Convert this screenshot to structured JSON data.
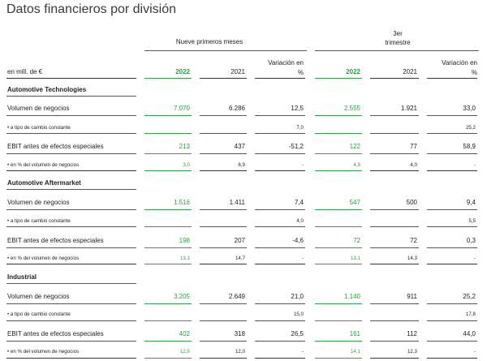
{
  "title": "Datos financieros por división",
  "groups": {
    "first": "Nueve primeros meses",
    "second_line1": "3er",
    "second_line2": "trimestre"
  },
  "header": {
    "unit": "en mill. de €",
    "y2022a": "2022",
    "y2021a": "2021",
    "var_a_1": "Variación en",
    "var_a_2": "%",
    "y2022b": "2022",
    "y2021b": "2021",
    "var_b_1": "Variación en",
    "var_b_2": "%"
  },
  "sections": [
    {
      "title": "Automotive Technologies",
      "rows": [
        {
          "label": "Volumen de negocios",
          "a22": "7.070",
          "a21": "6.286",
          "av": "12,5",
          "b22": "2.555",
          "b21": "1.921",
          "bv": "33,0"
        },
        {
          "label": "• a tipo de cambio constante",
          "a22": "",
          "a21": "",
          "av": "7,0",
          "b22": "",
          "b21": "",
          "bv": "25,2"
        },
        {
          "label": "EBIT antes de efectos especiales",
          "a22": "213",
          "a21": "437",
          "av": "-51,2",
          "b22": "122",
          "b21": "77",
          "bv": "58,9"
        },
        {
          "label": "• en % del volumen de negocios",
          "a22": "3,0",
          "a21": "6,9",
          "av": "-",
          "b22": "4,8",
          "b21": "4,0",
          "bv": "-"
        }
      ]
    },
    {
      "title": "Automotive Aftermarket",
      "rows": [
        {
          "label": "Volumen de negocios",
          "a22": "1.516",
          "a21": "1.411",
          "av": "7,4",
          "b22": "547",
          "b21": "500",
          "bv": "9,4"
        },
        {
          "label": "• a tipo de cambio constante",
          "a22": "",
          "a21": "",
          "av": "4,0",
          "b22": "",
          "b21": "",
          "bv": "5,5"
        },
        {
          "label": "EBIT antes de efectos especiales",
          "a22": "198",
          "a21": "207",
          "av": "-4,6",
          "b22": "72",
          "b21": "72",
          "bv": "0,3"
        },
        {
          "label": "• en % del volumen de negocios",
          "a22": "13,1",
          "a21": "14,7",
          "av": "-",
          "b22": "13,1",
          "b21": "14,3",
          "bv": "-"
        }
      ]
    },
    {
      "title": "Industrial",
      "rows": [
        {
          "label": "Volumen de negocios",
          "a22": "3.205",
          "a21": "2.649",
          "av": "21,0",
          "b22": "1.140",
          "b21": "911",
          "bv": "25,2"
        },
        {
          "label": "• a tipo de cambio constante",
          "a22": "",
          "a21": "",
          "av": "15,0",
          "b22": "",
          "b21": "",
          "bv": "17,8"
        },
        {
          "label": "EBIT antes de efectos especiales",
          "a22": "402",
          "a21": "318",
          "av": "26,5",
          "b22": "161",
          "b21": "112",
          "bv": "44,0"
        },
        {
          "label": "• en % del volumen de negocios",
          "a22": "12,5",
          "a21": "12,0",
          "av": "-",
          "b22": "14,1",
          "b21": "12,3",
          "bv": "-"
        }
      ]
    }
  ],
  "colors": {
    "green": "#2e9b45",
    "text": "#222222",
    "title": "#3a3a3a"
  }
}
